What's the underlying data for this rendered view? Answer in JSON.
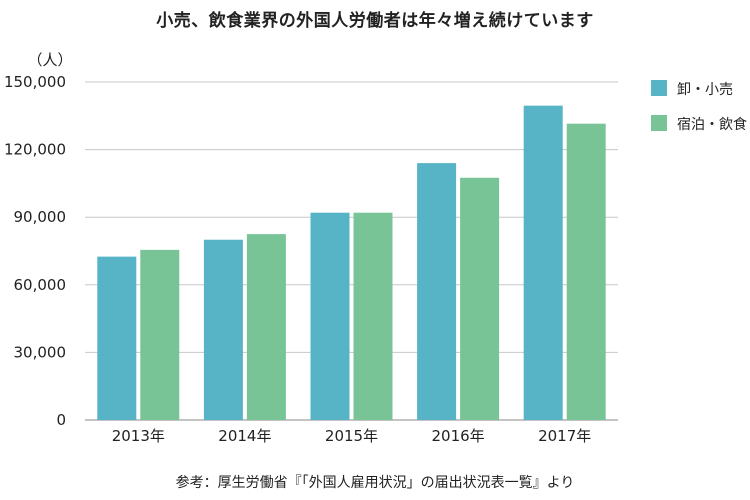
{
  "chart_data": {
    "type": "bar",
    "title": "小売、飲食業界の外国人労働者は年々増え続けています",
    "ylabel": "（人）",
    "categories": [
      "2013年",
      "2014年",
      "2015年",
      "2016年",
      "2017年"
    ],
    "series": [
      {
        "name": "卸・小売",
        "color": "#56b4c6",
        "values": [
          72500,
          80000,
          92000,
          114000,
          139500
        ]
      },
      {
        "name": "宿泊・飲食",
        "color": "#78c497",
        "values": [
          75500,
          82500,
          92000,
          107500,
          131500
        ]
      }
    ],
    "ylim": [
      0,
      150000
    ],
    "yticks": [
      "0",
      "30,000",
      "60,000",
      "90,000",
      "120,000",
      "150,000"
    ],
    "grid": true,
    "legend": "top-right",
    "source": "参考：厚生労働省『「外国人雇用状況」の届出状況表一覧』より"
  }
}
